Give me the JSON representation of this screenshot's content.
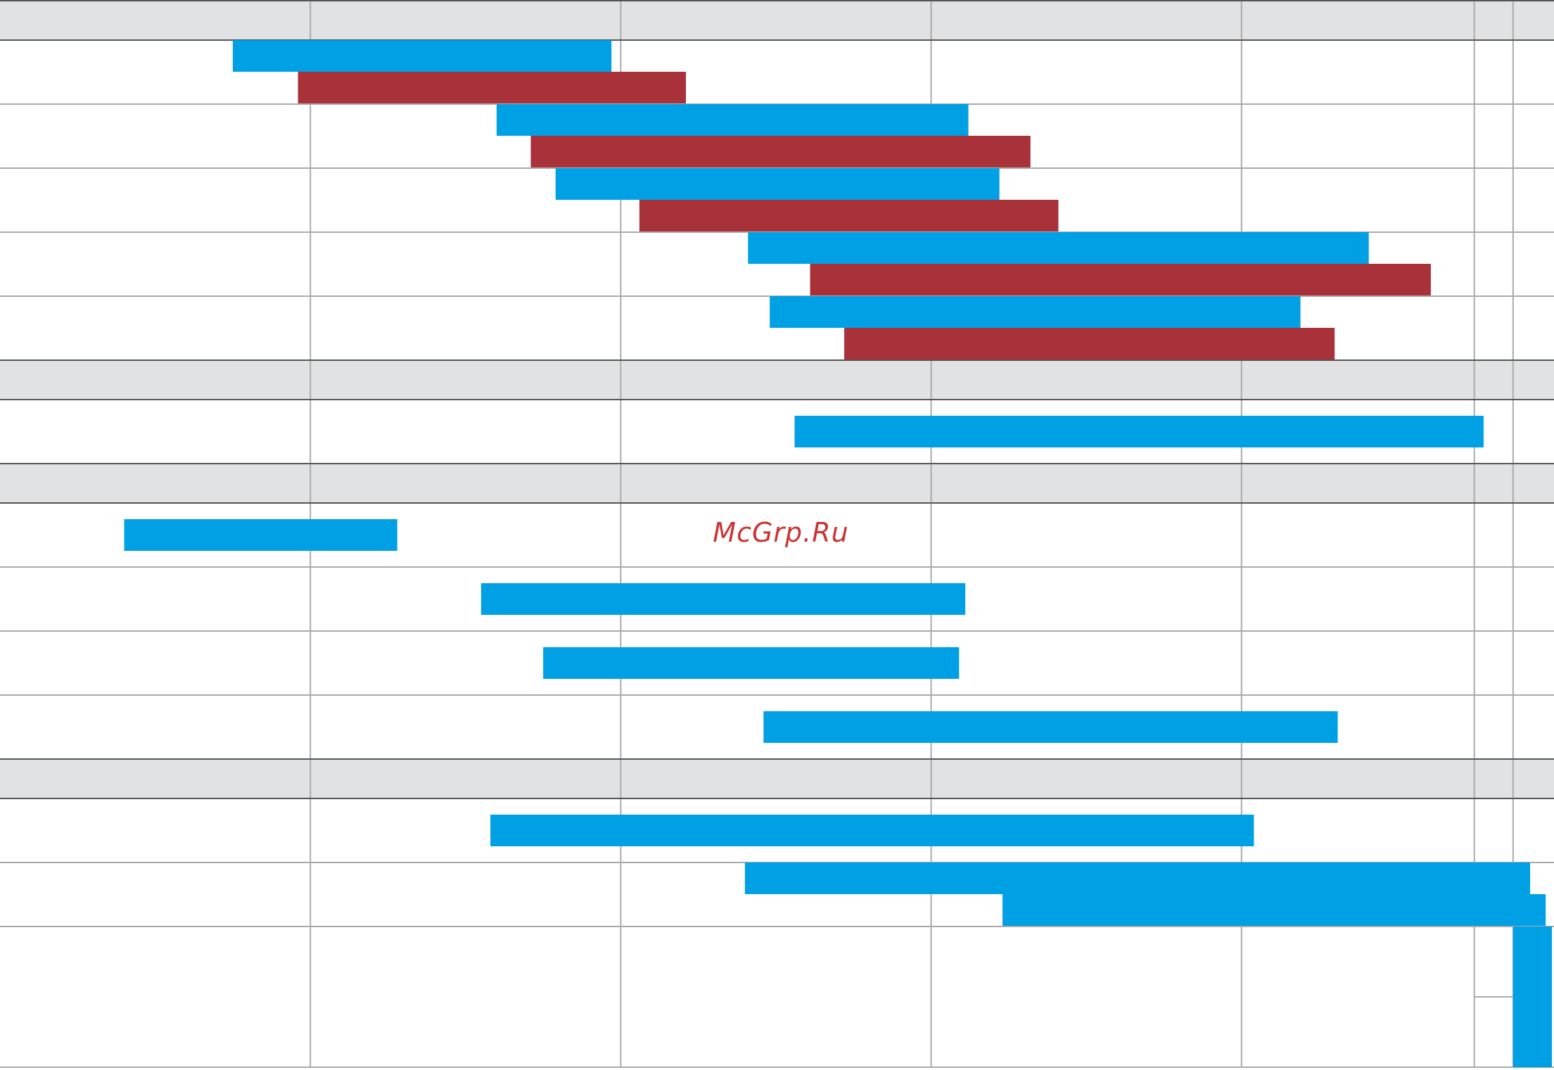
{
  "watermark": "McGrp.Ru",
  "colors": {
    "background": "#ffffff",
    "header_band": "#e1e2e4",
    "grid_line": "#aaaaaa",
    "section_border": "#555555",
    "series_a": "#00a0e4",
    "series_b": "#a8313a"
  },
  "chart_data": {
    "type": "gantt",
    "x_range": [
      0,
      5
    ],
    "grid_x": [
      1,
      2,
      3,
      4,
      4.75,
      4.875
    ],
    "sections": [
      {
        "rows": [
          {
            "bars": [
              {
                "series": "a",
                "start": 0.75,
                "end": 1.97
              },
              {
                "series": "b",
                "start": 0.96,
                "end": 2.21
              }
            ]
          },
          {
            "bars": [
              {
                "series": "a",
                "start": 1.6,
                "end": 3.12
              },
              {
                "series": "b",
                "start": 1.71,
                "end": 3.32
              }
            ]
          },
          {
            "bars": [
              {
                "series": "a",
                "start": 1.79,
                "end": 3.22
              },
              {
                "series": "b",
                "start": 2.06,
                "end": 3.41
              }
            ]
          },
          {
            "bars": [
              {
                "series": "a",
                "start": 2.41,
                "end": 4.41
              },
              {
                "series": "b",
                "start": 2.61,
                "end": 4.61
              }
            ]
          },
          {
            "bars": [
              {
                "series": "a",
                "start": 2.48,
                "end": 4.19
              },
              {
                "series": "b",
                "start": 2.72,
                "end": 4.3
              }
            ]
          }
        ]
      },
      {
        "rows": [
          {
            "bars": [
              {
                "series": "a",
                "start": 2.56,
                "end": 4.78
              }
            ]
          }
        ]
      },
      {
        "rows": [
          {
            "bars": [
              {
                "series": "a",
                "start": 0.4,
                "end": 1.28
              }
            ]
          },
          {
            "bars": [
              {
                "series": "a",
                "start": 1.55,
                "end": 3.11
              }
            ]
          },
          {
            "bars": [
              {
                "series": "a",
                "start": 1.75,
                "end": 3.09
              }
            ]
          },
          {
            "bars": [
              {
                "series": "a",
                "start": 2.46,
                "end": 4.31
              }
            ]
          }
        ]
      },
      {
        "rows": [
          {
            "bars": [
              {
                "series": "a",
                "start": 1.58,
                "end": 4.04
              }
            ]
          },
          {
            "bars": [
              {
                "series": "a",
                "start": 2.4,
                "end": 4.93
              },
              {
                "series": "a",
                "start": 3.23,
                "end": 4.98
              }
            ]
          },
          {
            "bars": [
              {
                "series": "a",
                "start": 4.875,
                "end": 5.0
              }
            ]
          }
        ]
      }
    ]
  }
}
